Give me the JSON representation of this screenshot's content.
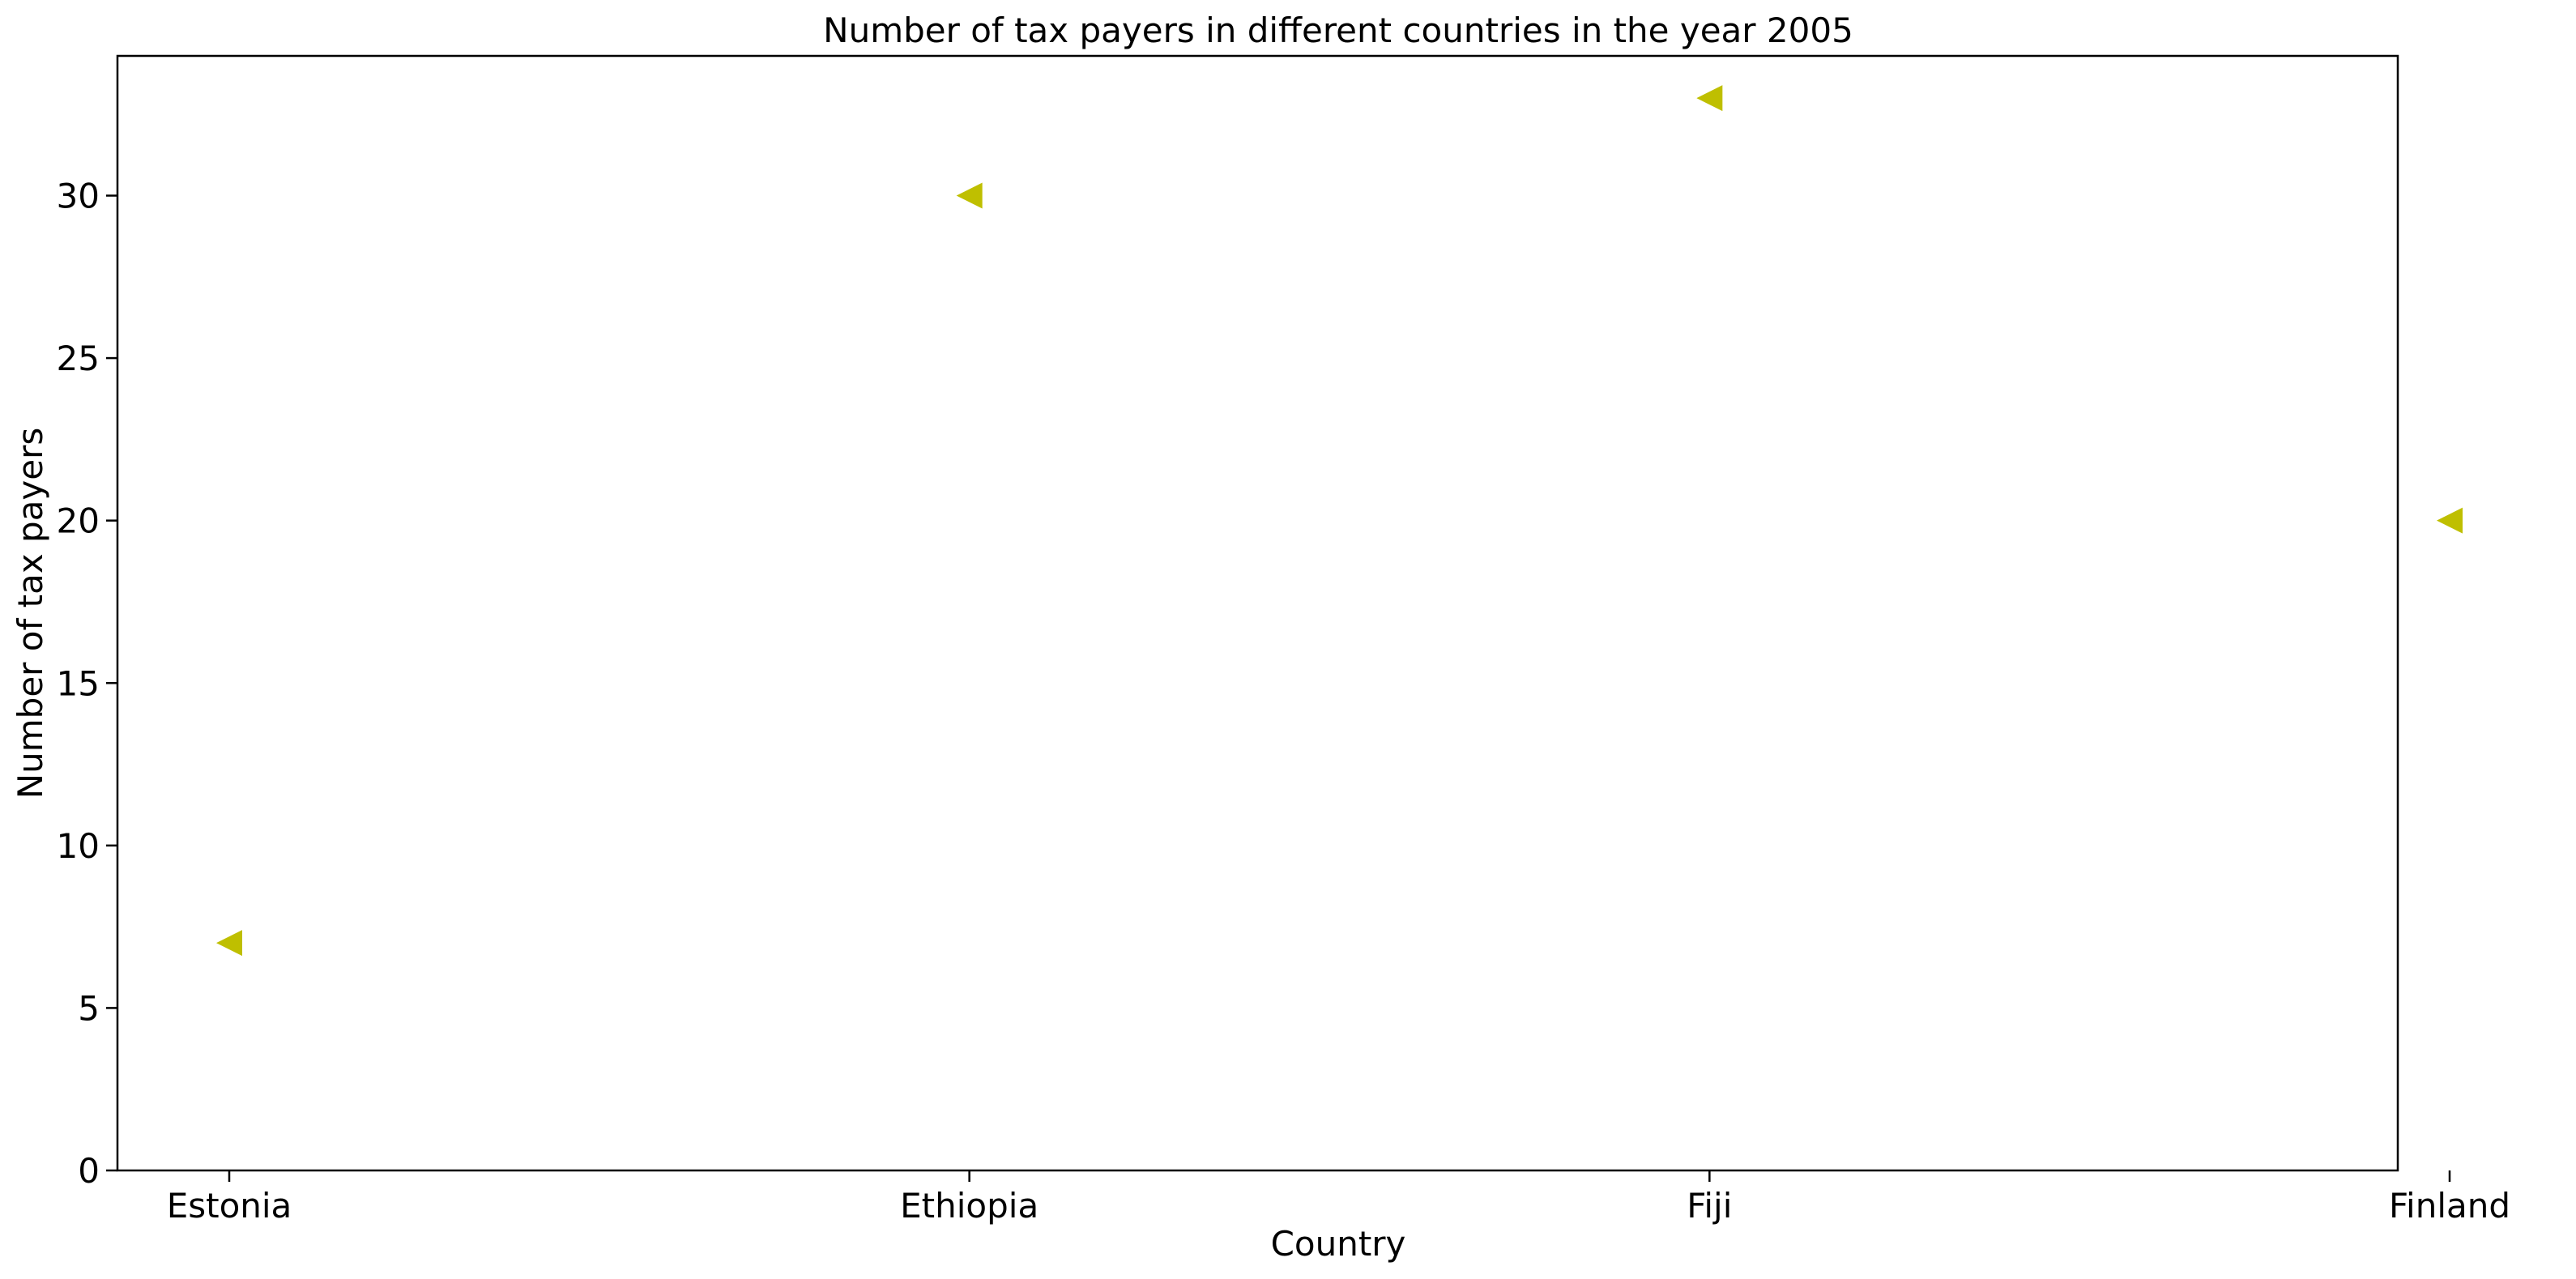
{
  "chart_data": {
    "type": "scatter",
    "title": "Number of tax payers in different countries in the year 2005",
    "xlabel": "Country",
    "ylabel": "Number of tax payers",
    "categories": [
      "Estonia",
      "Ethiopia",
      "Fiji",
      "Finland"
    ],
    "values": [
      7,
      30,
      33,
      20
    ],
    "ylim": [
      0,
      34.3
    ],
    "yticks": [
      0,
      5,
      10,
      15,
      20,
      25,
      30
    ],
    "marker": "triangle-left",
    "marker_color": "#bfbf00",
    "grid": false,
    "legend": "none"
  }
}
